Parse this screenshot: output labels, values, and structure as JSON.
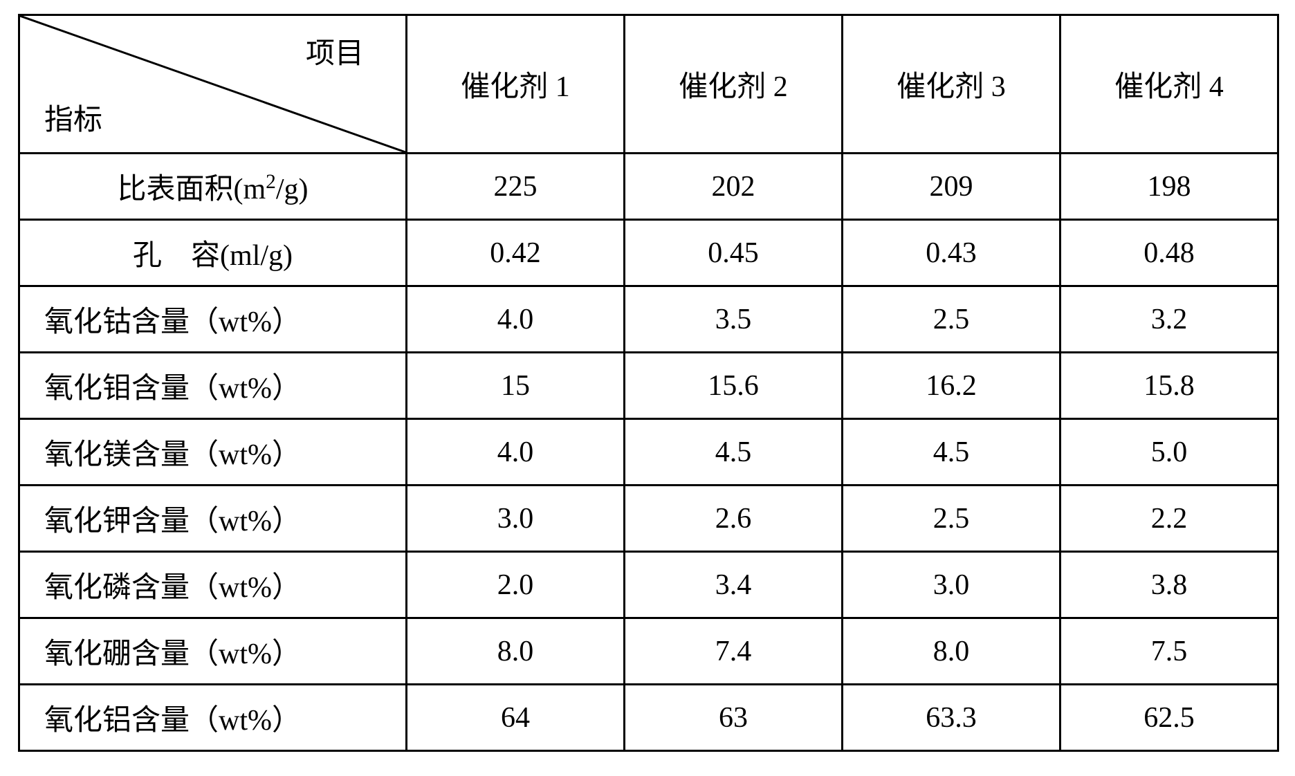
{
  "table": {
    "diagonal_header": {
      "top_label": "项目",
      "bottom_label": "指标"
    },
    "columns": [
      "催化剂 1",
      "催化剂 2",
      "催化剂 3",
      "催化剂 4"
    ],
    "rows": [
      {
        "label_html": "比表面积(m<sup>2</sup>/g)",
        "label_plain": "比表面积(m²/g)",
        "align": "center",
        "values": [
          "225",
          "202",
          "209",
          "198"
        ]
      },
      {
        "label_html": "孔&nbsp;&nbsp;&nbsp;&nbsp;容(ml/g)",
        "label_plain": "孔    容(ml/g)",
        "align": "center",
        "values": [
          "0.42",
          "0.45",
          "0.43",
          "0.48"
        ]
      },
      {
        "label_html": "氧化钴含量（wt%）",
        "label_plain": "氧化钴含量（wt%）",
        "align": "left",
        "values": [
          "4.0",
          "3.5",
          "2.5",
          "3.2"
        ]
      },
      {
        "label_html": "氧化钼含量（wt%）",
        "label_plain": "氧化钼含量（wt%）",
        "align": "left",
        "values": [
          "15",
          "15.6",
          "16.2",
          "15.8"
        ]
      },
      {
        "label_html": "氧化镁含量（wt%）",
        "label_plain": "氧化镁含量（wt%）",
        "align": "left",
        "values": [
          "4.0",
          "4.5",
          "4.5",
          "5.0"
        ]
      },
      {
        "label_html": "氧化钾含量（wt%）",
        "label_plain": "氧化钾含量（wt%）",
        "align": "left",
        "values": [
          "3.0",
          "2.6",
          "2.5",
          "2.2"
        ]
      },
      {
        "label_html": "氧化磷含量（wt%）",
        "label_plain": "氧化磷含量（wt%）",
        "align": "left",
        "values": [
          "2.0",
          "3.4",
          "3.0",
          "3.8"
        ]
      },
      {
        "label_html": "氧化硼含量（wt%）",
        "label_plain": "氧化硼含量（wt%）",
        "align": "left",
        "values": [
          "8.0",
          "7.4",
          "8.0",
          "7.5"
        ]
      },
      {
        "label_html": "氧化铝含量（wt%）",
        "label_plain": "氧化铝含量（wt%）",
        "align": "left",
        "values": [
          "64",
          "63",
          "63.3",
          "62.5"
        ]
      }
    ],
    "styling": {
      "border_color": "#000000",
      "border_width": 3,
      "background_color": "#ffffff",
      "text_color": "#000000",
      "font_family": "SimSun",
      "header_font_size": 42,
      "cell_font_size": 42,
      "header_row_height": 200,
      "data_row_height": 96,
      "label_col_width": 560,
      "data_col_width": 315
    }
  }
}
